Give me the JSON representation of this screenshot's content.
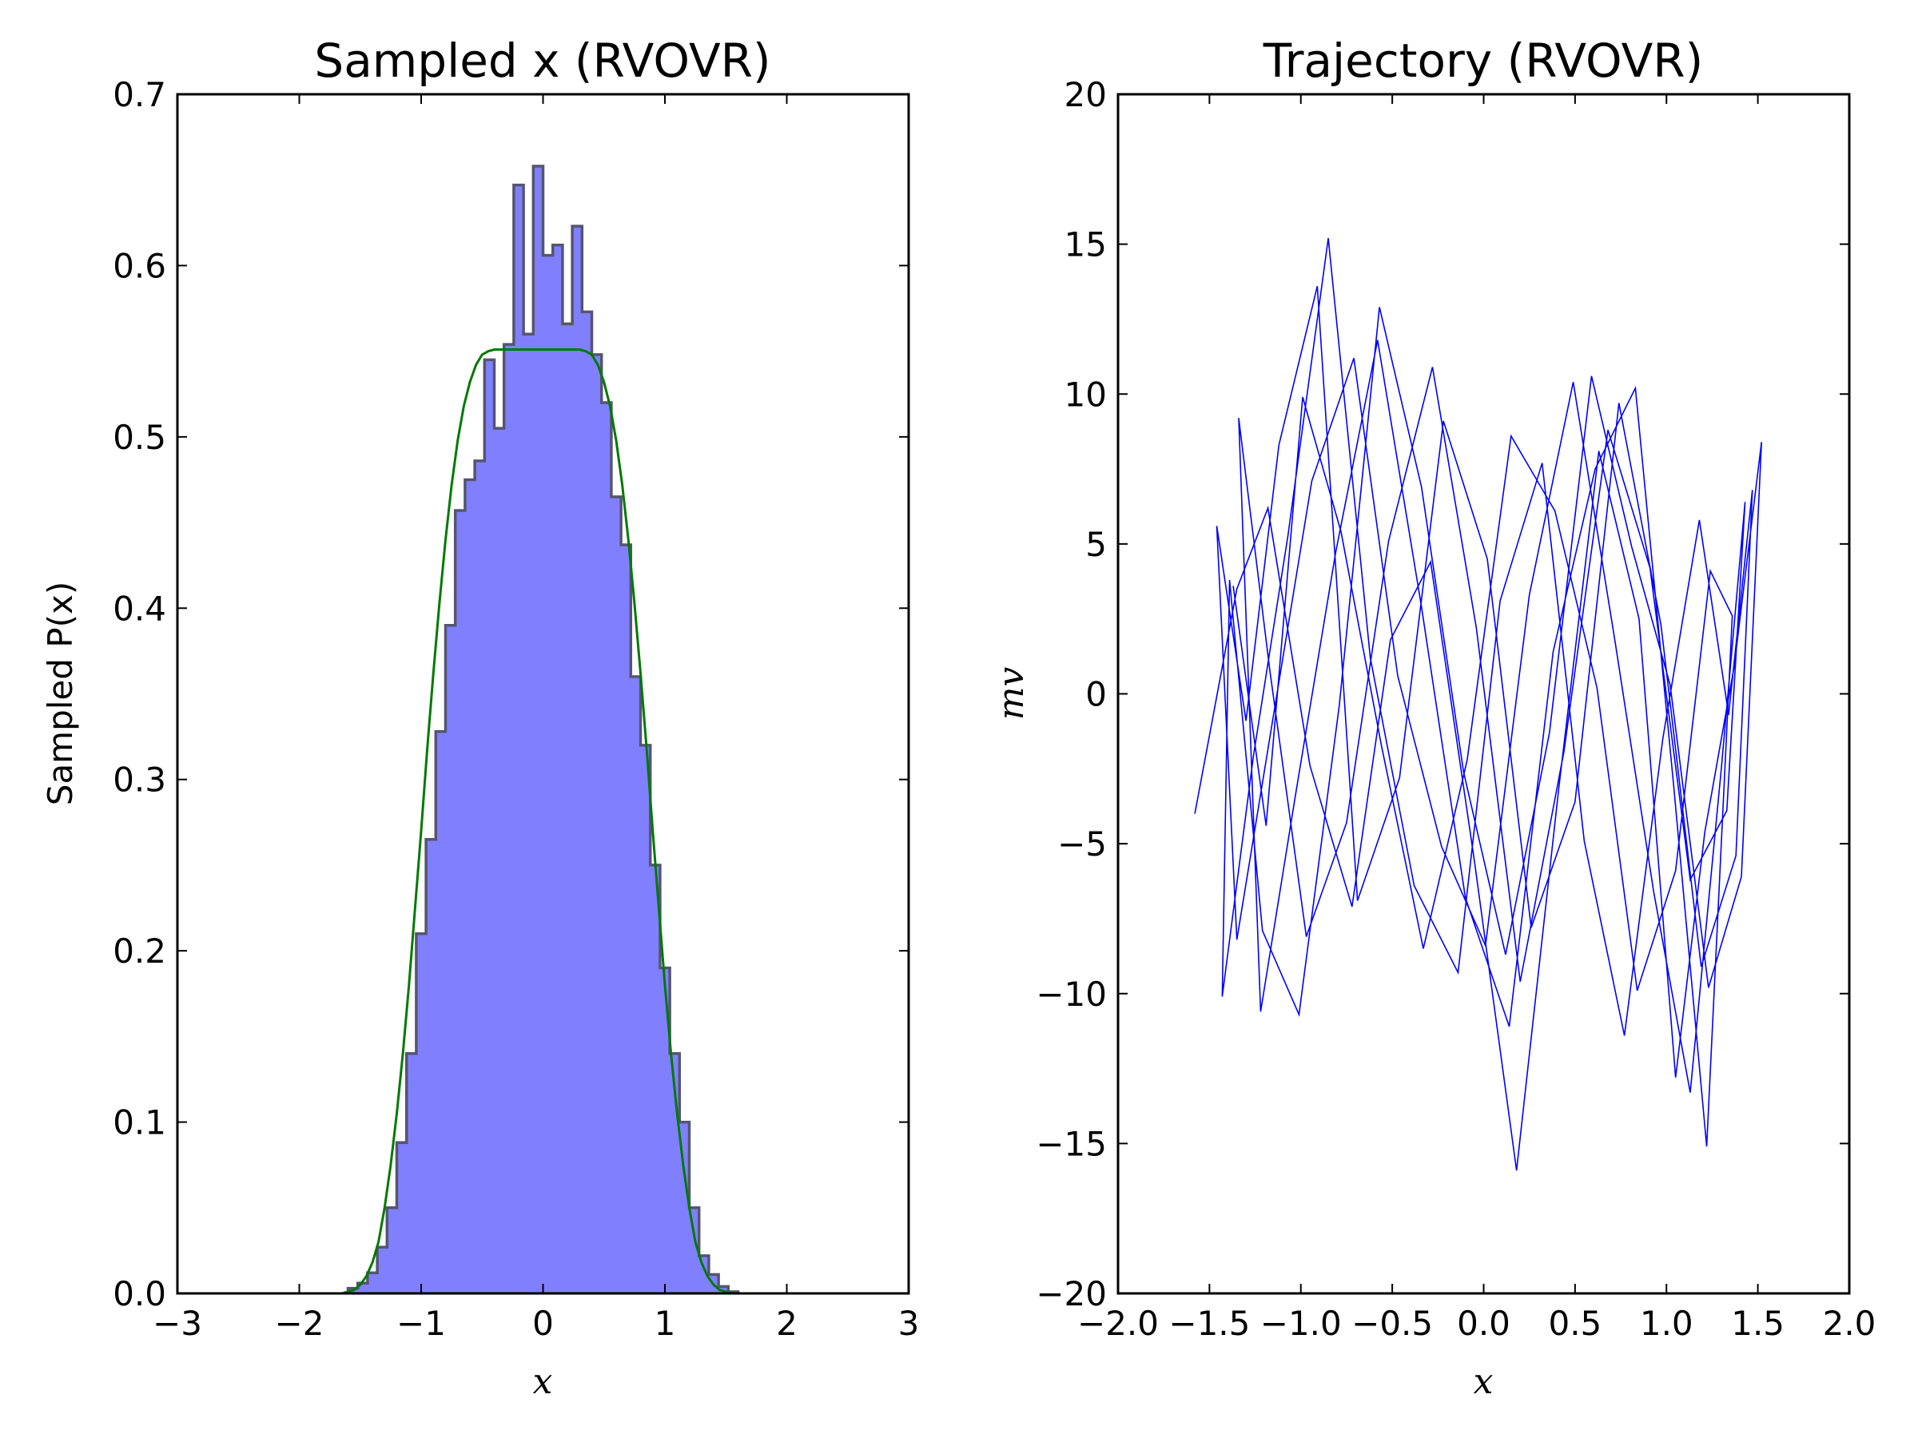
{
  "chart_data": [
    {
      "type": "histogram",
      "title": "Sampled x (RVOVR)",
      "xlabel": "x",
      "ylabel": "Sampled P(x)",
      "xlim": [
        -3,
        3
      ],
      "ylim": [
        0,
        0.7
      ],
      "xticks": [
        "−3",
        "−2",
        "−1",
        "0",
        "1",
        "2",
        "3"
      ],
      "yticks": [
        "0.0",
        "0.1",
        "0.2",
        "0.3",
        "0.4",
        "0.5",
        "0.6",
        "0.7"
      ],
      "grid": false,
      "colors": {
        "hist_fill": "#8080ff",
        "hist_edge": "#555570",
        "density_line": "#007a00"
      },
      "bins": {
        "edges": [
          -1.6,
          -1.52,
          -1.44,
          -1.36,
          -1.28,
          -1.2,
          -1.12,
          -1.04,
          -0.96,
          -0.88,
          -0.8,
          -0.72,
          -0.64,
          -0.56,
          -0.48,
          -0.4,
          -0.32,
          -0.24,
          -0.16,
          -0.08,
          0.0,
          0.08,
          0.16,
          0.24,
          0.32,
          0.4,
          0.48,
          0.56,
          0.64,
          0.72,
          0.8,
          0.88,
          0.96,
          1.04,
          1.12,
          1.2,
          1.28,
          1.36,
          1.44,
          1.52,
          1.6
        ],
        "values": [
          0.003,
          0.006,
          0.012,
          0.027,
          0.05,
          0.088,
          0.14,
          0.21,
          0.265,
          0.328,
          0.39,
          0.457,
          0.475,
          0.486,
          0.545,
          0.505,
          0.554,
          0.647,
          0.56,
          0.658,
          0.606,
          0.612,
          0.566,
          0.623,
          0.573,
          0.548,
          0.52,
          0.465,
          0.437,
          0.36,
          0.32,
          0.25,
          0.19,
          0.14,
          0.1,
          0.05,
          0.022,
          0.011,
          0.004,
          0.001
        ]
      },
      "density_curve": {
        "x": [
          -1.65,
          -1.6,
          -1.55,
          -1.5,
          -1.45,
          -1.4,
          -1.35,
          -1.3,
          -1.25,
          -1.2,
          -1.15,
          -1.1,
          -1.05,
          -1.0,
          -0.95,
          -0.9,
          -0.85,
          -0.8,
          -0.75,
          -0.7,
          -0.65,
          -0.6,
          -0.55,
          -0.5,
          -0.45,
          -0.4,
          -0.35,
          -0.3,
          -0.25,
          -0.2,
          -0.1,
          0.0,
          0.1,
          0.2,
          0.25,
          0.3,
          0.35,
          0.4,
          0.45,
          0.5,
          0.55,
          0.6,
          0.65,
          0.7,
          0.75,
          0.8,
          0.85,
          0.9,
          0.95,
          1.0,
          1.05,
          1.1,
          1.15,
          1.2,
          1.25,
          1.3,
          1.35,
          1.4,
          1.45,
          1.5,
          1.55,
          1.6,
          1.65
        ],
        "y": [
          0.0,
          0.001,
          0.002,
          0.005,
          0.01,
          0.018,
          0.03,
          0.05,
          0.075,
          0.105,
          0.14,
          0.18,
          0.225,
          0.27,
          0.318,
          0.362,
          0.403,
          0.44,
          0.472,
          0.498,
          0.518,
          0.532,
          0.542,
          0.548,
          0.55,
          0.551,
          0.551,
          0.551,
          0.551,
          0.551,
          0.551,
          0.551,
          0.551,
          0.551,
          0.551,
          0.551,
          0.55,
          0.548,
          0.542,
          0.532,
          0.518,
          0.498,
          0.472,
          0.44,
          0.403,
          0.362,
          0.318,
          0.27,
          0.225,
          0.18,
          0.14,
          0.105,
          0.075,
          0.05,
          0.03,
          0.018,
          0.01,
          0.005,
          0.002,
          0.001,
          0.0,
          0.0,
          0.0
        ]
      }
    },
    {
      "type": "line",
      "title": "Trajectory (RVOVR)",
      "xlabel": "x",
      "ylabel": "mv",
      "xlim": [
        -2.0,
        2.0
      ],
      "ylim": [
        -20,
        20
      ],
      "xticks": [
        "−2.0",
        "−1.5",
        "−1.0",
        "−0.5",
        "0.0",
        "0.5",
        "1.0",
        "1.5",
        "2.0"
      ],
      "yticks": [
        "−20",
        "−15",
        "−10",
        "−5",
        "0",
        "5",
        "10",
        "15",
        "20"
      ],
      "grid": false,
      "colors": {
        "line": "#0000ff"
      },
      "series": [
        {
          "x": [
            -1.58,
            -1.35,
            -1.18,
            -0.95,
            -0.72,
            -0.51,
            -0.29,
            -0.05,
            0.18,
            0.41,
            0.63,
            0.85,
            1.05,
            1.21,
            1.37,
            1.52,
            1.41,
            1.23,
            1.02,
            0.81,
            0.59,
            0.36,
            0.12,
            -0.11,
            -0.34,
            -0.57,
            -0.79,
            -1.01,
            -1.21,
            -1.39,
            -1.43,
            -1.26,
            -1.07,
            -0.85,
            -0.62,
            -0.38,
            -0.14,
            0.09,
            0.32,
            0.55,
            0.77,
            0.98,
            1.18,
            1.34,
            1.47,
            1.38,
            1.19,
            0.97,
            0.74,
            0.5,
            0.26,
            0.02,
            -0.22,
            -0.46,
            -0.69,
            -0.91,
            -1.12,
            -1.3,
            -1.46,
            -1.35,
            -1.16,
            -0.94,
            -0.71,
            -0.47,
            -0.23,
            0.01,
            0.25,
            0.49,
            0.72,
            0.93,
            1.13,
            1.3,
            1.43,
            1.33,
            1.13,
            0.91,
            0.68,
            0.44,
            0.2,
            -0.04,
            -0.28,
            -0.52,
            -0.75,
            -0.97,
            -1.17,
            -1.34,
            -1.22,
            -1.03,
            -0.81,
            -0.58,
            -0.34,
            -0.1,
            0.14,
            0.38,
            0.61,
            0.83,
            1.04,
            1.22,
            1.36,
            1.24,
            1.05,
            0.84,
            0.62,
            0.39,
            0.15,
            -0.09,
            -0.33,
            -0.56,
            -0.78,
            -0.99,
            -1.19,
            -1.37
          ],
          "y": [
            -4.0,
            3.5,
            6.2,
            -2.4,
            -7.1,
            1.8,
            4.4,
            -5.6,
            -15.9,
            -3.2,
            8.1,
            2.5,
            -12.8,
            -4.6,
            0.9,
            8.4,
            -6.1,
            -9.8,
            0.3,
            4.9,
            10.6,
            -1.3,
            -8.7,
            -2.6,
            6.9,
            12.9,
            -0.4,
            -10.7,
            -7.9,
            3.8,
            -10.1,
            -2.1,
            5.3,
            15.2,
            1.2,
            -6.4,
            -9.3,
            3.1,
            7.7,
            -4.9,
            -11.4,
            -1.5,
            5.8,
            -0.7,
            6.8,
            -5.4,
            -9.1,
            2.3,
            9.7,
            -3.6,
            -7.8,
            4.5,
            9.1,
            -2.8,
            -6.9,
            13.6,
            8.3,
            -0.9,
            5.6,
            -8.2,
            -1.1,
            7.1,
            11.2,
            0.6,
            -5.1,
            -8.4,
            3.3,
            10.4,
            1.7,
            -6.6,
            -13.3,
            -2.5,
            6.4,
            -3.9,
            -6.2,
            4.2,
            8.8,
            -1.9,
            -9.6,
            2.2,
            10.9,
            5.1,
            -4.3,
            -8.1,
            0.8,
            9.2,
            -10.6,
            -3.4,
            4.7,
            11.8,
            2.9,
            -6.8,
            -11.1,
            1.4,
            7.5,
            10.2,
            -3.1,
            -15.1,
            2.6,
            4.1,
            -5.9,
            -9.9,
            0.2,
            6.1,
            8.6,
            -2.2,
            -8.5,
            -1.7,
            5.4,
            9.9,
            -4.4,
            3.6
          ]
        }
      ]
    }
  ]
}
